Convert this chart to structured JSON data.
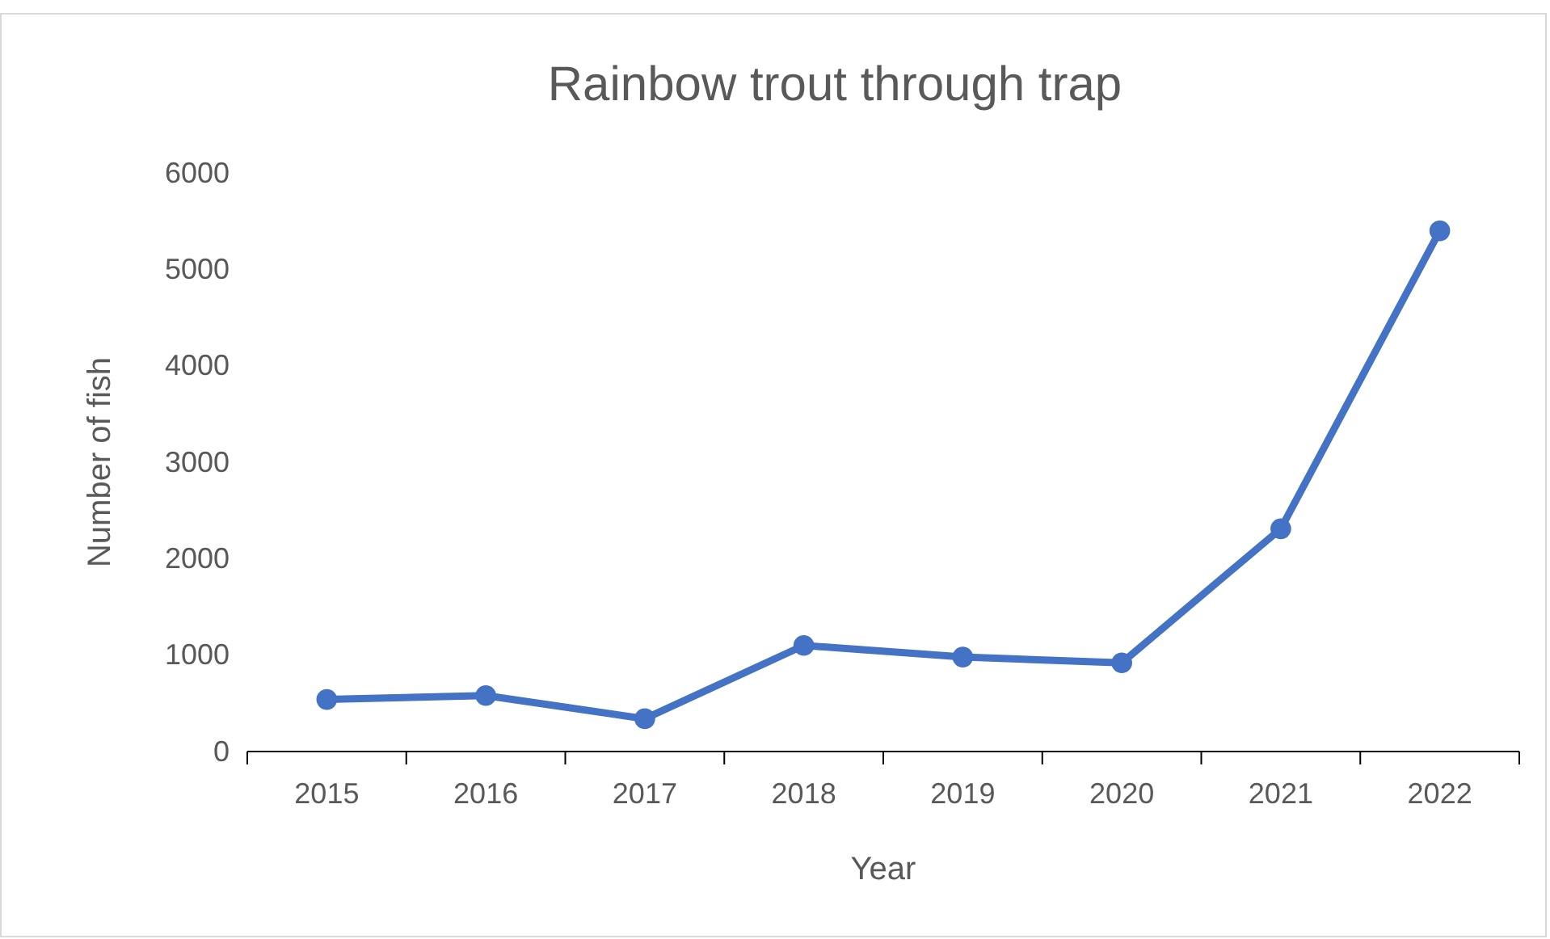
{
  "chart_data": {
    "type": "line",
    "title": "Rainbow trout through trap",
    "xlabel": "Year",
    "ylabel": "Number of fish",
    "categories": [
      "2015",
      "2016",
      "2017",
      "2018",
      "2019",
      "2020",
      "2021",
      "2022"
    ],
    "series": [
      {
        "color": "#4472c4",
        "values": [
          540,
          580,
          340,
          1100,
          980,
          920,
          2310,
          5400
        ]
      }
    ],
    "ylim": [
      0,
      6000
    ],
    "yticks": [
      0,
      1000,
      2000,
      3000,
      4000,
      5000,
      6000
    ],
    "grid": false,
    "marker": "circle",
    "line_style": "solid"
  }
}
